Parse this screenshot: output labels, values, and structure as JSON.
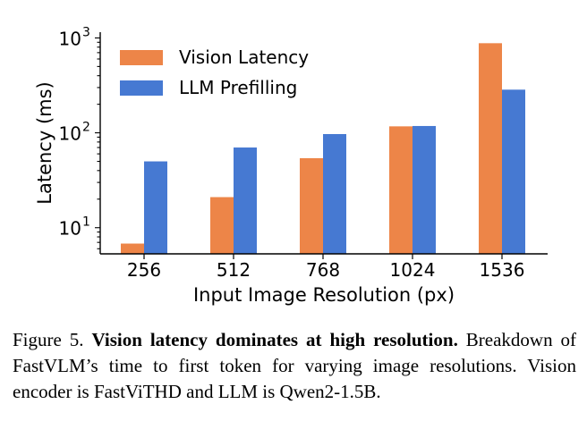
{
  "chart_data": {
    "type": "bar",
    "categories": [
      "256",
      "512",
      "768",
      "1024",
      "1536"
    ],
    "series": [
      {
        "name": "Vision Latency",
        "color": "#ED8548",
        "values": [
          6.8,
          21,
          54,
          117,
          880
        ]
      },
      {
        "name": "LLM Prefilling",
        "color": "#4679D2",
        "values": [
          50,
          70,
          97,
          118,
          285
        ]
      }
    ],
    "yscale": "log",
    "ylim": [
      5.3,
      1150
    ],
    "yticks": [
      {
        "value": 10,
        "base": "10",
        "exp": "1"
      },
      {
        "value": 100,
        "base": "10",
        "exp": "2"
      },
      {
        "value": 1000,
        "base": "10",
        "exp": "3"
      }
    ],
    "xlabel": "Input Image Resolution (px)",
    "ylabel": "Latency (ms)",
    "legend_position": "top-left"
  },
  "caption": {
    "prefix": "Figure 5.",
    "bold": "Vision latency dominates at high resolution.",
    "text": "Breakdown of FastVLM’s time to first token for varying image resolutions. Vision encoder is FastViTHD and LLM is Qwen2-1.5B."
  }
}
